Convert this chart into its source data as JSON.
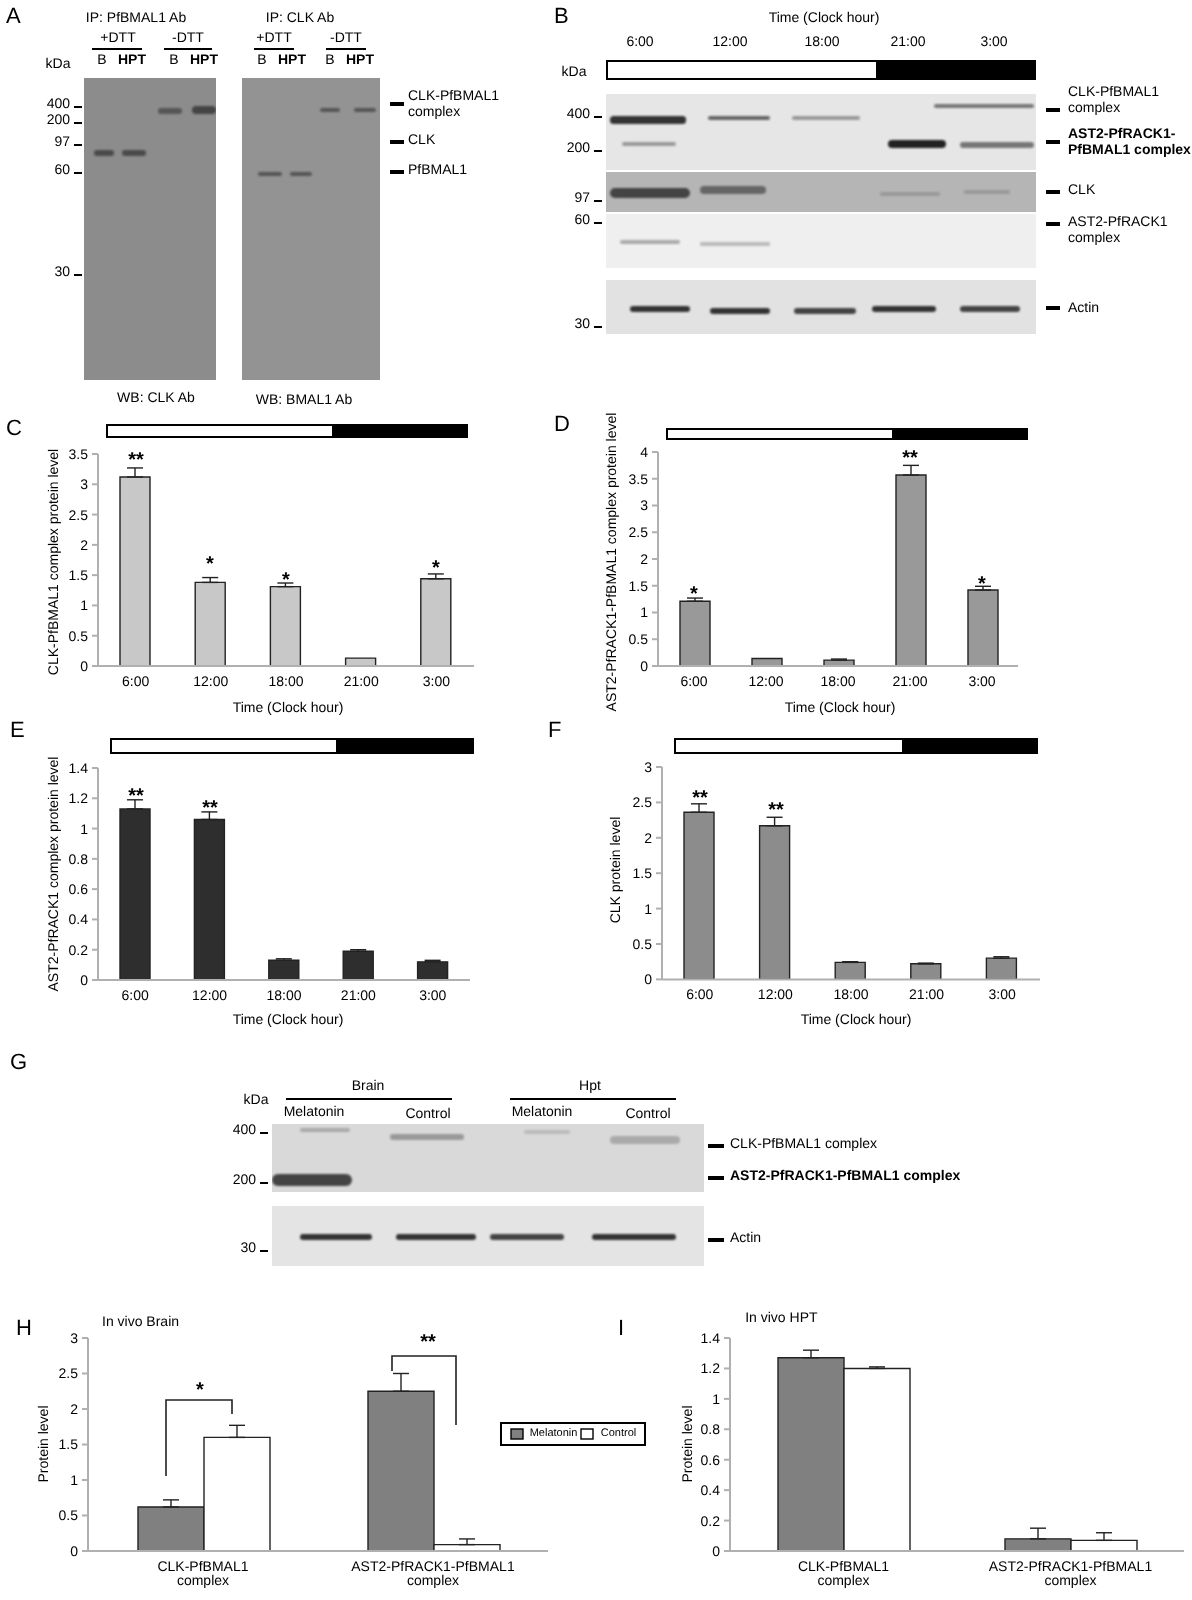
{
  "chart_data": [
    {
      "type": "other",
      "annotations": [
        "A",
        "IP: PfBMAL1 Ab",
        "+DTT",
        "-DTT",
        "B",
        "HPT",
        "B",
        "HPT",
        "IP: CLK Ab",
        "+DTT",
        "-DTT",
        "B",
        "HPT",
        "B",
        "HPT",
        "kDa",
        "400",
        "200",
        "97",
        "60",
        "30",
        "CLK-PfBMAL1 complex",
        "CLK",
        "PfBMAL1",
        "WB: CLK Ab",
        "WB: BMAL1 Ab"
      ]
    },
    {
      "type": "other",
      "annotations": [
        "B",
        "Time (Clock hour)",
        "6:00",
        "12:00",
        "18:00",
        "21:00",
        "3:00",
        "kDa",
        "400",
        "200",
        "97",
        "60",
        "30",
        "CLK-PfBMAL1 complex",
        "AST2-PfRACK1-PfBMAL1 complex",
        "CLK",
        "AST2-PfRACK1 complex",
        "Actin"
      ]
    },
    {
      "type": "bar",
      "categories": [
        "6:00",
        "12:00",
        "18:00",
        "21:00",
        "3:00"
      ],
      "values": [
        3.12,
        1.38,
        1.31,
        0.13,
        1.44
      ],
      "errors": [
        [
          3.12,
          3.27
        ],
        [
          1.38,
          1.46
        ],
        [
          1.31,
          1.37
        ],
        null,
        [
          1.44,
          1.52
        ]
      ],
      "color": "#c8c8c8",
      "ylim": [
        0,
        3.5
      ],
      "yticks": [
        0,
        0.5,
        1,
        1.5,
        2,
        2.5,
        3,
        3.5
      ],
      "xlabel": "Time (Clock hour)",
      "ylabel": "CLK-PfBMAL1 complex protein level",
      "annotations": [
        "C",
        "**",
        "*",
        "*",
        "*"
      ]
    },
    {
      "type": "bar",
      "categories": [
        "6:00",
        "12:00",
        "18:00",
        "21:00",
        "3:00"
      ],
      "values": [
        1.21,
        0.14,
        0.11,
        3.57,
        1.42
      ],
      "errors": [
        [
          1.21,
          1.27
        ],
        null,
        [
          0.11,
          0.13
        ],
        [
          3.57,
          3.75
        ],
        [
          1.42,
          1.49
        ]
      ],
      "color": "#999999",
      "ylim": [
        0,
        4
      ],
      "yticks": [
        0,
        0.5,
        1,
        1.5,
        2,
        2.5,
        3,
        3.5,
        4
      ],
      "xlabel": "Time (Clock hour)",
      "ylabel": "AST2-PfRACK1-PfBMAL1 complex protein level",
      "annotations": [
        "D",
        "*",
        "**",
        "*"
      ]
    },
    {
      "type": "bar",
      "categories": [
        "6:00",
        "12:00",
        "18:00",
        "21:00",
        "3:00"
      ],
      "values": [
        1.13,
        1.06,
        0.13,
        0.19,
        0.12
      ],
      "errors": [
        [
          1.13,
          1.19
        ],
        [
          1.06,
          1.11
        ],
        [
          0.13,
          0.14
        ],
        [
          0.19,
          0.2
        ],
        [
          0.12,
          0.13
        ]
      ],
      "color": "#2e2e2e",
      "ylim": [
        0,
        1.4
      ],
      "yticks": [
        0,
        0.2,
        0.4,
        0.6,
        0.8,
        1,
        1.2,
        1.4
      ],
      "xlabel": "Time (Clock hour)",
      "ylabel": "AST2-PfRACK1 complex protein level",
      "annotations": [
        "E",
        "**",
        "**"
      ]
    },
    {
      "type": "bar",
      "categories": [
        "6:00",
        "12:00",
        "18:00",
        "21:00",
        "3:00"
      ],
      "values": [
        2.36,
        2.17,
        0.24,
        0.22,
        0.3
      ],
      "errors": [
        [
          2.36,
          2.48
        ],
        [
          2.17,
          2.29
        ],
        [
          0.24,
          0.25
        ],
        [
          0.22,
          0.23
        ],
        [
          0.3,
          0.32
        ]
      ],
      "color": "#8c8c8c",
      "ylim": [
        0,
        3
      ],
      "yticks": [
        0,
        0.5,
        1,
        1.5,
        2,
        2.5,
        3
      ],
      "xlabel": "Time (Clock hour)",
      "ylabel": "CLK protein level",
      "annotations": [
        "F",
        "**",
        "**"
      ]
    },
    {
      "type": "other",
      "annotations": [
        "G",
        "kDa",
        "Brain",
        "Hpt",
        "Melatonin",
        "Control",
        "Melatonin",
        "Control",
        "400",
        "200",
        "30",
        "CLK-PfBMAL1 complex",
        "AST2-PfRACK1-PfBMAL1 complex",
        "Actin"
      ]
    },
    {
      "type": "bar",
      "title": "In vivo Brain",
      "categories": [
        "CLK-PfBMAL1 complex",
        "AST2-PfRACK1-PfBMAL1 complex"
      ],
      "series": [
        {
          "name": "Melatonin",
          "color": "#808080",
          "values": [
            0.62,
            2.25
          ],
          "errors": [
            [
              0.62,
              0.72
            ],
            [
              2.25,
              2.5
            ]
          ]
        },
        {
          "name": "Control",
          "color": "#ffffff",
          "values": [
            1.6,
            0.09
          ],
          "errors": [
            [
              1.6,
              1.77
            ],
            [
              0.09,
              0.17
            ]
          ]
        }
      ],
      "ylim": [
        0,
        3
      ],
      "yticks": [
        0,
        0.5,
        1,
        1.5,
        2,
        2.5,
        3
      ],
      "ylabel": "Protein level",
      "legend": "right",
      "annotations": [
        "H",
        "*",
        "**"
      ]
    },
    {
      "type": "bar",
      "title": "In vivo HPT",
      "categories": [
        "CLK-PfBMAL1 complex",
        "AST2-PfRACK1-PfBMAL1 complex"
      ],
      "series": [
        {
          "color": "#808080",
          "values": [
            1.27,
            0.08
          ],
          "errors": [
            [
              1.27,
              1.32
            ],
            [
              0.08,
              0.15
            ]
          ]
        },
        {
          "color": "#ffffff",
          "values": [
            1.2,
            0.07
          ],
          "errors": [
            [
              1.2,
              1.21
            ],
            [
              0.07,
              0.12
            ]
          ]
        }
      ],
      "ylim": [
        0,
        1.4
      ],
      "yticks": [
        0,
        0.2,
        0.4,
        0.6,
        0.8,
        1,
        1.2,
        1.4
      ],
      "ylabel": "Protein level",
      "annotations": [
        "I"
      ]
    }
  ]
}
